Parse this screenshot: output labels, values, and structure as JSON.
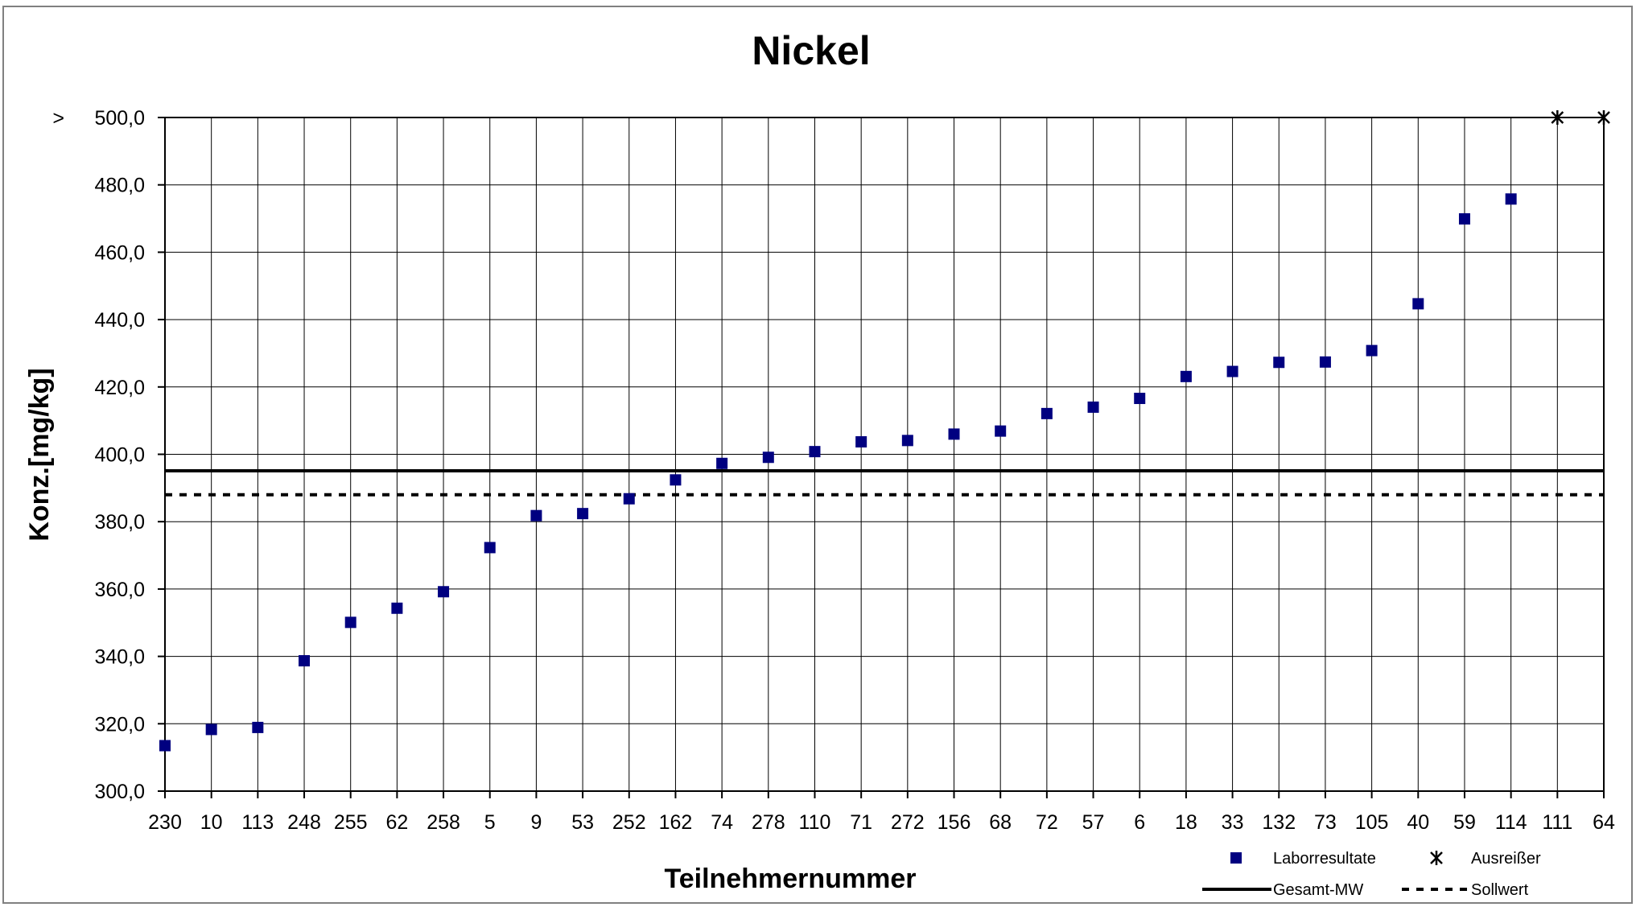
{
  "chart_data": {
    "type": "scatter",
    "title": "Nickel",
    "xlabel": "Teilnehmernummer",
    "ylabel": "Konz.[mg/kg]",
    "ylim": [
      300,
      500
    ],
    "y_ticks": [
      "300,0",
      "320,0",
      "340,0",
      "360,0",
      "380,0",
      "400,0",
      "420,0",
      "440,0",
      "460,0",
      "480,0",
      "500,0"
    ],
    "y_top_prefix": ">",
    "categories": [
      "230",
      "10",
      "113",
      "248",
      "255",
      "62",
      "258",
      "5",
      "9",
      "53",
      "252",
      "162",
      "74",
      "278",
      "110",
      "71",
      "272",
      "156",
      "68",
      "72",
      "57",
      "6",
      "18",
      "33",
      "132",
      "73",
      "105",
      "40",
      "59",
      "114",
      "111",
      "64"
    ],
    "grid": true,
    "legend_position": "bottom-right",
    "series": [
      {
        "name": "Laborresultate",
        "marker": "square",
        "color": "#000080",
        "values": [
          313.5,
          318.3,
          318.9,
          338.7,
          350.1,
          354.3,
          359.2,
          372.3,
          381.8,
          382.4,
          386.8,
          392.4,
          397.3,
          399.1,
          400.8,
          403.7,
          404.1,
          406.0,
          406.9,
          412.1,
          414.0,
          416.6,
          423.1,
          424.6,
          427.3,
          427.4,
          430.8,
          444.7,
          469.9,
          475.8,
          null,
          null
        ]
      },
      {
        "name": "Ausreißer",
        "marker": "asterisk",
        "color": "#000000",
        "values": [
          null,
          null,
          null,
          null,
          null,
          null,
          null,
          null,
          null,
          null,
          null,
          null,
          null,
          null,
          null,
          null,
          null,
          null,
          null,
          null,
          null,
          null,
          null,
          null,
          null,
          null,
          null,
          null,
          null,
          null,
          500,
          500
        ]
      },
      {
        "name": "Gesamt-MW",
        "line_style": "solid",
        "color": "#000000",
        "value": 395.1
      },
      {
        "name": "Sollwert",
        "line_style": "dashed",
        "color": "#000000",
        "value": 388.0
      }
    ]
  }
}
